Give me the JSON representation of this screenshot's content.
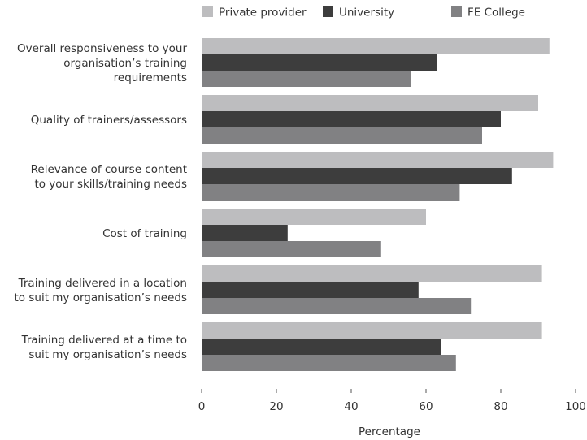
{
  "chart_data": {
    "type": "bar",
    "orientation": "horizontal",
    "categories": [
      [
        "Overall responsiveness to your",
        "organisation’s training",
        "requirements"
      ],
      [
        "Quality of trainers/assessors"
      ],
      [
        "Relevance of course content",
        "to your skills/training needs"
      ],
      [
        "Cost of training"
      ],
      [
        "Training delivered in a location",
        "to suit my organisation’s needs"
      ],
      [
        "Training delivered at a time to",
        "suit my organisation’s needs"
      ]
    ],
    "series": [
      {
        "name": "Private provider",
        "color": "#bdbdbf",
        "values": [
          93,
          90,
          94,
          60,
          91,
          91
        ]
      },
      {
        "name": "University",
        "color": "#3d3d3d",
        "values": [
          63,
          80,
          83,
          23,
          58,
          64
        ]
      },
      {
        "name": "FE College",
        "color": "#818183",
        "values": [
          56,
          75,
          69,
          48,
          72,
          68
        ]
      }
    ],
    "xlabel": "Percentage",
    "xlim": [
      0,
      100
    ],
    "xticks": [
      0,
      20,
      40,
      60,
      80,
      100
    ],
    "grid": false,
    "legend_position": "top"
  }
}
